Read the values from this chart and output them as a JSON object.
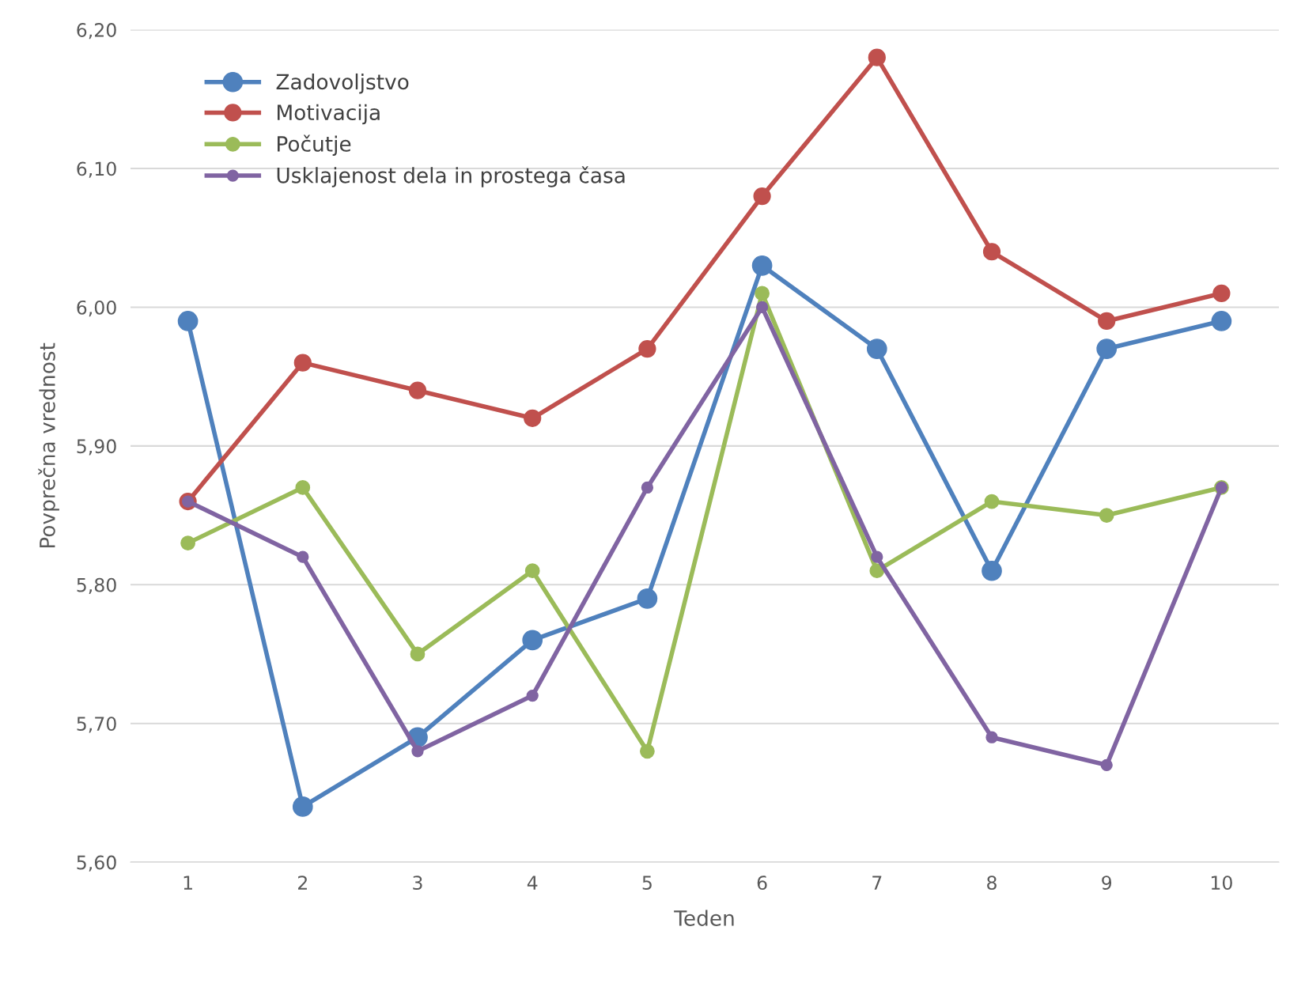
{
  "chart_data": {
    "type": "line",
    "xlabel": "Teden",
    "ylabel": "Povprečna vrednost",
    "categories": [
      "1",
      "2",
      "3",
      "4",
      "5",
      "6",
      "7",
      "8",
      "9",
      "10"
    ],
    "series": [
      {
        "name": "Zadovoljstvo",
        "color": "#4f81bd",
        "values": [
          5.99,
          5.64,
          5.69,
          5.76,
          5.79,
          6.03,
          5.97,
          5.81,
          5.97,
          5.99
        ]
      },
      {
        "name": "Motivacija",
        "color": "#c0504d",
        "values": [
          5.86,
          5.96,
          5.94,
          5.92,
          5.97,
          6.08,
          6.18,
          6.04,
          5.99,
          6.01
        ]
      },
      {
        "name": "Počutje",
        "color": "#9bbb59",
        "values": [
          5.83,
          5.87,
          5.75,
          5.81,
          5.68,
          6.01,
          5.81,
          5.86,
          5.85,
          5.87
        ]
      },
      {
        "name": "Usklajenost dela in prostega časa",
        "color": "#8064a2",
        "values": [
          5.86,
          5.82,
          5.68,
          5.72,
          5.87,
          6.0,
          5.82,
          5.69,
          5.67,
          5.87
        ]
      }
    ],
    "ylim": [
      5.6,
      6.2
    ],
    "yticks": [
      {
        "value": 5.6,
        "label": "5,60"
      },
      {
        "value": 5.7,
        "label": "5,70"
      },
      {
        "value": 5.8,
        "label": "5,80"
      },
      {
        "value": 5.9,
        "label": "5,90"
      },
      {
        "value": 6.0,
        "label": "6,00"
      },
      {
        "value": 6.1,
        "label": "6,10"
      },
      {
        "value": 6.2,
        "label": "6,20"
      }
    ],
    "grid": "y",
    "legend": "top left",
    "marker": "circle",
    "line_style": "solid"
  }
}
